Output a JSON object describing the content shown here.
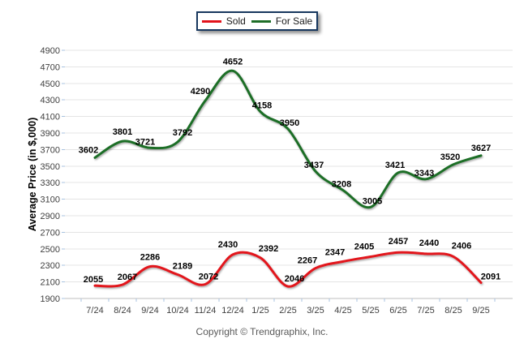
{
  "legend": {
    "items": [
      {
        "label": "Sold",
        "color": "#e2131b"
      },
      {
        "label": "For Sale",
        "color": "#1e6e28"
      }
    ]
  },
  "chart_data": {
    "type": "line",
    "title": "",
    "xlabel": "",
    "ylabel": "Average Price (in $,000)",
    "categories": [
      "7/24",
      "8/24",
      "9/24",
      "10/24",
      "11/24",
      "12/24",
      "1/25",
      "2/25",
      "3/25",
      "4/25",
      "5/25",
      "6/25",
      "7/25",
      "8/25",
      "9/25"
    ],
    "series": [
      {
        "name": "Sold",
        "color": "#e2131b",
        "values": [
          2055,
          2067,
          2286,
          2189,
          2072,
          2430,
          2392,
          2046,
          2267,
          2347,
          2405,
          2457,
          2440,
          2406,
          2091
        ]
      },
      {
        "name": "For Sale",
        "color": "#1e6e28",
        "values": [
          3602,
          3801,
          3721,
          3792,
          4290,
          4652,
          4158,
          3950,
          3437,
          3208,
          3005,
          3421,
          3343,
          3520,
          3627
        ]
      }
    ],
    "ylim": [
      1900,
      4900
    ],
    "ytick_step": 200,
    "grid": true,
    "legend_position": "top",
    "smooth": true
  },
  "footer": {
    "copyright": "Copyright © Trendgraphix, Inc."
  }
}
